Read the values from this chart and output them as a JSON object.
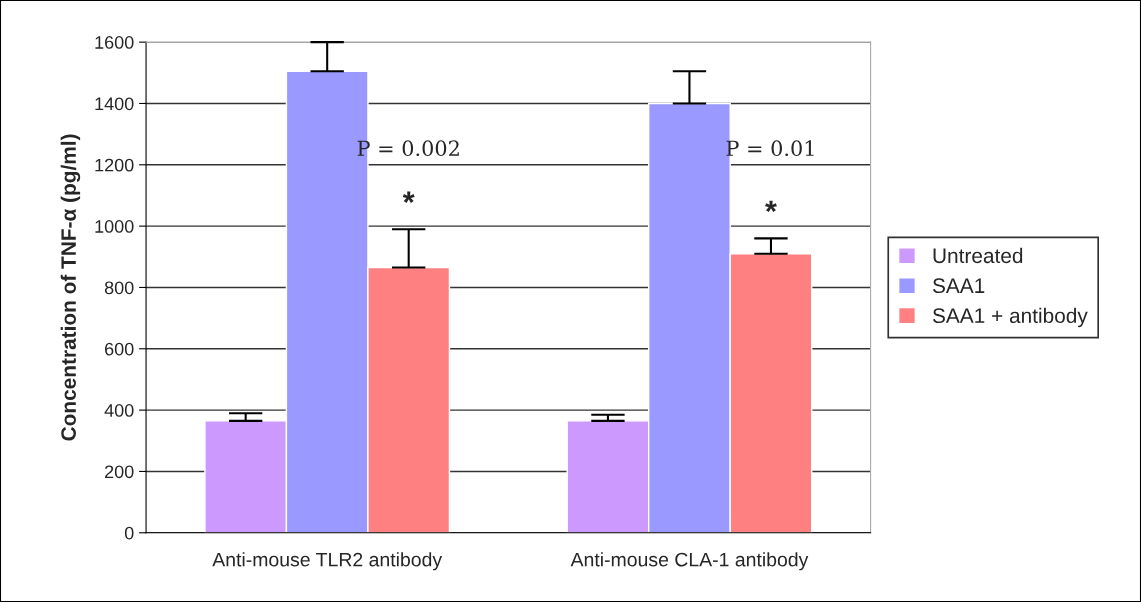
{
  "chart_data": {
    "type": "bar",
    "ylabel": "Concentration of TNF-α (pg/ml)",
    "categories": [
      "Anti-mouse TLR2 antibody",
      "Anti-mouse CLA-1 antibody"
    ],
    "series": [
      {
        "name": "Untreated",
        "color": "#cc99ff",
        "values": [
          365,
          365
        ],
        "errors": [
          [
            365,
            390
          ],
          [
            365,
            385
          ]
        ]
      },
      {
        "name": "SAA1",
        "color": "#9999ff",
        "values": [
          1505,
          1400
        ],
        "errors": [
          [
            1505,
            1600
          ],
          [
            1400,
            1505
          ]
        ]
      },
      {
        "name": "SAA1 + antibody",
        "color": "#ff8080",
        "values": [
          865,
          910
        ],
        "errors": [
          [
            865,
            990
          ],
          [
            910,
            960
          ]
        ]
      }
    ],
    "annotations": [
      "P = 0.002",
      "*",
      "P = 0.01",
      "*"
    ],
    "ylim": [
      0,
      1600
    ],
    "yticks": [
      0,
      200,
      400,
      600,
      800,
      1000,
      1200,
      1400,
      1600
    ],
    "grid": "y",
    "legend": "right"
  }
}
